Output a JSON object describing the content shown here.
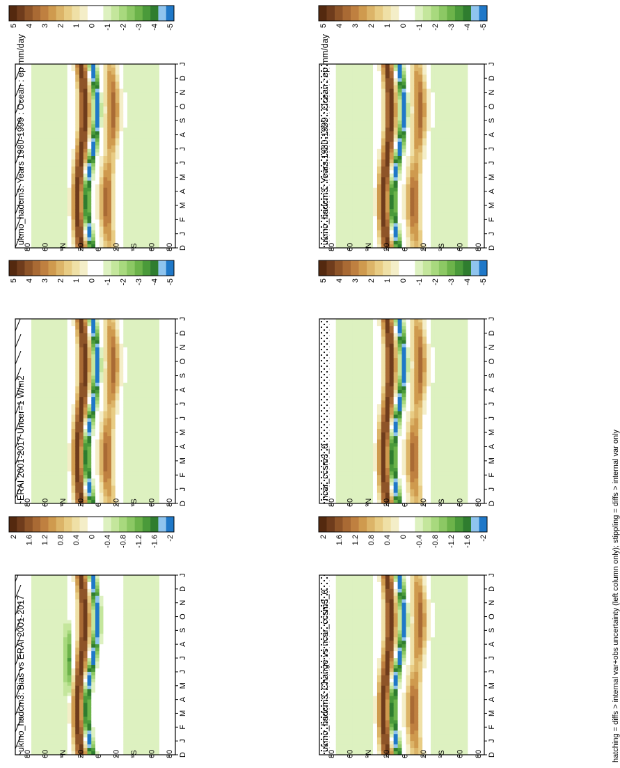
{
  "footer_note": "hatching = diffs > internal var+obs uncertainty (left column only); stippling = diffs > internal var only",
  "months": [
    "D",
    "J",
    "F",
    "M",
    "A",
    "M",
    "J",
    "J",
    "A",
    "S",
    "O",
    "N",
    "D",
    "J"
  ],
  "lat_ticks": [
    "80",
    "60",
    "°N",
    "20",
    "0",
    "20",
    "°S",
    "60",
    "80"
  ],
  "colors": {
    "mean_scale": [
      "#1f78c8",
      "#8fc4ee",
      "#2f7d2f",
      "#4a9a3a",
      "#6cb34a",
      "#8cc864",
      "#a8d97e",
      "#c4e69c",
      "#ddf1c0",
      "#ffffff",
      "#ffffff",
      "#f4eec8",
      "#efe0a6",
      "#e8cc84",
      "#dcb468",
      "#cf9a4e",
      "#bf8040",
      "#a96a34",
      "#8e5428",
      "#6f3c1c",
      "#54290f"
    ]
  },
  "chart_data": [
    {
      "type": "heatmap",
      "title": "ukmo_hadcm3: Years 1980-1999 : Ocean : ep mm/day",
      "x": [
        "D",
        "J",
        "F",
        "M",
        "A",
        "M",
        "J",
        "J",
        "A",
        "S",
        "O",
        "N",
        "D",
        "J"
      ],
      "y_ticks": [
        "80",
        "60",
        "°N",
        "20",
        "0",
        "20",
        "°S",
        "60",
        "80"
      ],
      "colorbar": {
        "ticks": [
          "5",
          "4",
          "3",
          "2",
          "1",
          "0",
          "-1",
          "-2",
          "-3",
          "-4",
          "-5"
        ],
        "range": [
          -5,
          5
        ]
      },
      "overlay": "hatching",
      "series": [
        {
          "name": "",
          "lat_center": 12,
          "amplitude": 5,
          "band": "north-dry"
        },
        {
          "name": "",
          "lat_center": 0,
          "amplitude": -5,
          "band": "itcz"
        },
        {
          "name": "",
          "lat_center": -20,
          "amplitude": 4,
          "band": "south-dry"
        }
      ]
    },
    {
      "type": "heatmap",
      "title": "ukmo_hadcm3: Years 1980-1999 : Ocean : ep mm/day",
      "x": [
        "D",
        "J",
        "F",
        "M",
        "A",
        "M",
        "J",
        "J",
        "A",
        "S",
        "O",
        "N",
        "D",
        "J"
      ],
      "y_ticks": [
        "80",
        "60",
        "°N",
        "20",
        "0",
        "20",
        "°S",
        "60",
        "80"
      ],
      "colorbar": {
        "ticks": [
          "5",
          "4",
          "3",
          "2",
          "1",
          "0",
          "-1",
          "-2",
          "-3",
          "-4",
          "-5"
        ],
        "range": [
          -5,
          5
        ]
      },
      "overlay": "stippling",
      "series": [
        {
          "name": "",
          "lat_center": 12,
          "amplitude": 5,
          "band": "north-dry"
        },
        {
          "name": "",
          "lat_center": 0,
          "amplitude": -5,
          "band": "itcz"
        },
        {
          "name": "",
          "lat_center": -20,
          "amplitude": 4,
          "band": "south-dry"
        }
      ]
    },
    {
      "type": "heatmap",
      "title": "ERAI 2001-2017 Uncer=1 W/m2",
      "x": [
        "D",
        "J",
        "F",
        "M",
        "A",
        "M",
        "J",
        "J",
        "A",
        "S",
        "O",
        "N",
        "D",
        "J"
      ],
      "y_ticks": [
        "80",
        "60",
        "°N",
        "20",
        "0",
        "20",
        "°S",
        "60",
        "80"
      ],
      "colorbar": {
        "ticks": [
          "5",
          "4",
          "3",
          "2",
          "1",
          "0",
          "-1",
          "-2",
          "-3",
          "-4",
          "-5"
        ],
        "range": [
          -5,
          5
        ]
      },
      "overlay": "hatching",
      "series": [
        {
          "name": "",
          "lat_center": 12,
          "amplitude": 5,
          "band": "north-dry"
        },
        {
          "name": "",
          "lat_center": 0,
          "amplitude": -5,
          "band": "itcz"
        },
        {
          "name": "",
          "lat_center": -20,
          "amplitude": 4,
          "band": "south-dry"
        }
      ]
    },
    {
      "type": "heatmap",
      "title": "ncar_ccsm3_0",
      "x": [
        "D",
        "J",
        "F",
        "M",
        "A",
        "M",
        "J",
        "J",
        "A",
        "S",
        "O",
        "N",
        "D",
        "J"
      ],
      "y_ticks": [
        "80",
        "60",
        "°N",
        "20",
        "0",
        "20",
        "°S",
        "60",
        "80"
      ],
      "colorbar": {
        "ticks": [
          "5",
          "4",
          "3",
          "2",
          "1",
          "0",
          "-1",
          "-2",
          "-3",
          "-4",
          "-5"
        ],
        "range": [
          -5,
          5
        ]
      },
      "overlay": "stippling",
      "series": [
        {
          "name": "",
          "lat_center": 12,
          "amplitude": 5,
          "band": "north-dry"
        },
        {
          "name": "",
          "lat_center": 0,
          "amplitude": -5,
          "band": "itcz"
        },
        {
          "name": "",
          "lat_center": -20,
          "amplitude": 4,
          "band": "south-dry"
        }
      ]
    },
    {
      "type": "heatmap",
      "title": "ukmo_hadcm3: Bias vs ERAI 2001-2017",
      "x": [
        "D",
        "J",
        "F",
        "M",
        "A",
        "M",
        "J",
        "J",
        "A",
        "S",
        "O",
        "N",
        "D",
        "J"
      ],
      "y_ticks": [
        "80",
        "60",
        "°N",
        "20",
        "0",
        "20",
        "°S",
        "60",
        "80"
      ],
      "colorbar": {
        "ticks": [
          "2",
          "1.6",
          "1.2",
          "0.8",
          "0.4",
          "0",
          "-0.4",
          "-0.8",
          "-1.2",
          "-1.6",
          "-2"
        ],
        "range": [
          -2,
          2
        ]
      },
      "overlay": "hatching",
      "series": [
        {
          "name": "",
          "lat_center": 12,
          "amplitude": 2,
          "band": "north-dry"
        },
        {
          "name": "",
          "lat_center": 0,
          "amplitude": -2,
          "band": "itcz"
        },
        {
          "name": "",
          "lat_center": 30,
          "amplitude": -1.2,
          "band": "north-wet"
        }
      ]
    },
    {
      "type": "heatmap",
      "title": "ukmo_hadcm3: Change vs ncar_ccsm3_0",
      "x": [
        "D",
        "J",
        "F",
        "M",
        "A",
        "M",
        "J",
        "J",
        "A",
        "S",
        "O",
        "N",
        "D",
        "J"
      ],
      "y_ticks": [
        "80",
        "60",
        "°N",
        "20",
        "0",
        "20",
        "°S",
        "60",
        "80"
      ],
      "colorbar": {
        "ticks": [
          "2",
          "1.6",
          "1.2",
          "0.8",
          "0.4",
          "0",
          "-0.4",
          "-0.8",
          "-1.2",
          "-1.6",
          "-2"
        ],
        "range": [
          -2,
          2
        ]
      },
      "overlay": "stippling",
      "series": [
        {
          "name": "",
          "lat_center": 12,
          "amplitude": 2,
          "band": "north-dry"
        },
        {
          "name": "",
          "lat_center": 0,
          "amplitude": -2,
          "band": "itcz"
        },
        {
          "name": "",
          "lat_center": -20,
          "amplitude": 1.6,
          "band": "south-dry"
        }
      ]
    }
  ]
}
